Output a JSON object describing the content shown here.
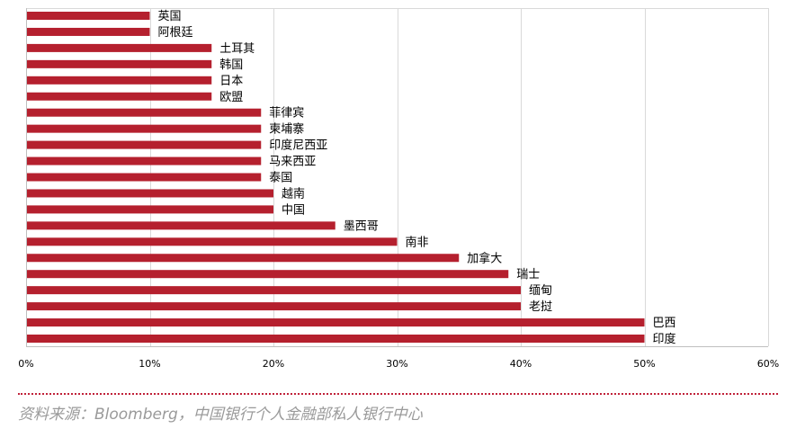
{
  "chart_data": {
    "type": "bar",
    "orientation": "horizontal",
    "categories": [
      "英国",
      "阿根廷",
      "土耳其",
      "韩国",
      "日本",
      "欧盟",
      "菲律宾",
      "柬埔寨",
      "印度尼西亚",
      "马来西亚",
      "泰国",
      "越南",
      "中国",
      "墨西哥",
      "南非",
      "加拿大",
      "瑞士",
      "缅甸",
      "老挝",
      "巴西",
      "印度"
    ],
    "values": [
      10,
      10,
      15,
      15,
      15,
      15,
      19,
      19,
      19,
      19,
      19,
      20,
      20,
      25,
      30,
      35,
      39,
      40,
      40,
      50,
      50
    ],
    "value_unit": "%",
    "xlim": [
      0,
      60
    ],
    "xticks": [
      0,
      10,
      20,
      30,
      40,
      50,
      60
    ],
    "xtick_labels": [
      "0%",
      "10%",
      "20%",
      "30%",
      "40%",
      "50%",
      "60%"
    ],
    "grid": "vertical",
    "bar_color": "#b5202e",
    "title": "",
    "xlabel": "",
    "ylabel": ""
  },
  "source_text": "资料来源：Bloomberg，中国银行个人金融部私人银行中心"
}
